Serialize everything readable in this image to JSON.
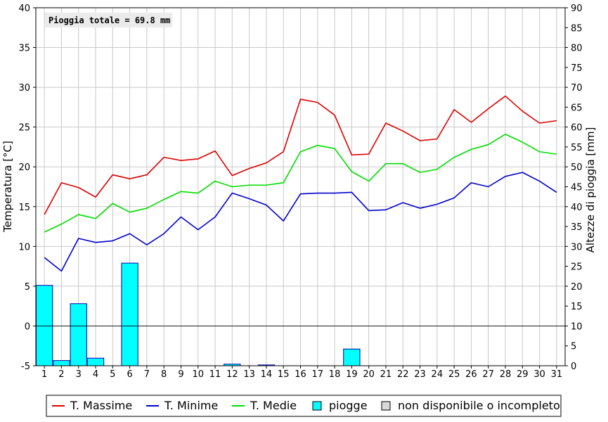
{
  "chart_data": {
    "type": "line+bar",
    "annotation": "Pioggia totale = 69.8 mm",
    "xlabel": "",
    "ylabel_left": "Temperatura [°C]",
    "ylabel_right": "Altezze di pioggia [mm]",
    "x": [
      1,
      2,
      3,
      4,
      5,
      6,
      7,
      8,
      9,
      10,
      11,
      12,
      13,
      14,
      15,
      16,
      17,
      18,
      19,
      20,
      21,
      22,
      23,
      24,
      25,
      26,
      27,
      28,
      29,
      30,
      31
    ],
    "ylim_left": [
      -5,
      40
    ],
    "ylim_right": [
      0,
      90
    ],
    "yticks_left": [
      -5,
      0,
      5,
      10,
      15,
      20,
      25,
      30,
      35,
      40
    ],
    "yticks_right": [
      0,
      5,
      10,
      15,
      20,
      25,
      30,
      35,
      40,
      45,
      50,
      55,
      60,
      65,
      70,
      75,
      80,
      85,
      90
    ],
    "grid": true,
    "legend_position": "bottom",
    "series": [
      {
        "name": "T. Massime",
        "color": "#dd0000",
        "axis": "left",
        "values": [
          14.0,
          18.0,
          17.4,
          16.2,
          19.0,
          18.5,
          19.0,
          21.2,
          20.8,
          21.0,
          22.0,
          18.9,
          19.8,
          20.5,
          21.9,
          28.5,
          28.1,
          26.5,
          21.5,
          21.6,
          25.5,
          24.5,
          23.3,
          23.5,
          27.2,
          25.6,
          27.3,
          28.9,
          27.0,
          25.5,
          25.8
        ]
      },
      {
        "name": "T. Minime",
        "color": "#0000cc",
        "axis": "left",
        "values": [
          8.6,
          6.9,
          11.0,
          10.5,
          10.7,
          11.6,
          10.2,
          11.6,
          13.7,
          12.1,
          13.7,
          16.7,
          16.0,
          15.2,
          13.2,
          16.6,
          16.7,
          16.7,
          16.8,
          14.5,
          14.6,
          15.5,
          14.8,
          15.3,
          16.1,
          18.0,
          17.5,
          18.8,
          19.3,
          18.2,
          16.8
        ]
      },
      {
        "name": "T. Medie",
        "color": "#00dd00",
        "axis": "left",
        "values": [
          11.8,
          12.8,
          14.0,
          13.5,
          15.4,
          14.3,
          14.8,
          15.9,
          16.9,
          16.7,
          18.2,
          17.5,
          17.7,
          17.7,
          18.0,
          21.9,
          22.7,
          22.3,
          19.4,
          18.2,
          20.4,
          20.4,
          19.3,
          19.7,
          21.2,
          22.2,
          22.8,
          24.1,
          23.1,
          21.9,
          21.6
        ]
      },
      {
        "name": "piogge",
        "color": "#00ffff",
        "type": "bar",
        "axis": "right",
        "values": [
          20.2,
          1.3,
          15.6,
          1.9,
          0,
          25.8,
          0,
          0,
          0,
          0,
          0,
          0.4,
          0,
          0.2,
          0,
          0,
          0,
          0,
          4.2,
          0,
          0,
          0,
          0,
          0,
          0,
          0,
          0,
          0,
          0,
          0,
          0
        ]
      }
    ],
    "legend_extra": "non disponibile o incompleto",
    "colors": {
      "bar_fill": "#00ffff",
      "bar_stroke": "#0000aa",
      "grid": "#c8c8c8",
      "missing": "#d9d9d9"
    }
  }
}
